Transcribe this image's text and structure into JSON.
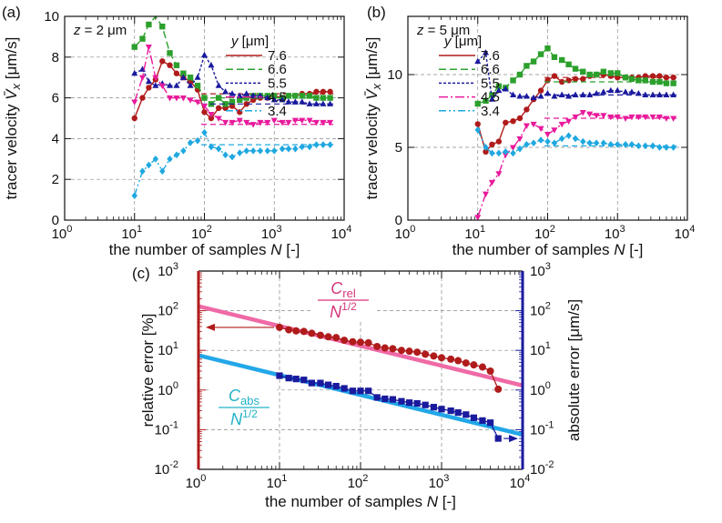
{
  "chart_data": [
    {
      "type": "line",
      "panel": "(a)",
      "annotation": "z = 2 μm",
      "title": "",
      "xlabel": "the number of samples N [-]",
      "ylabel": "tracer velocity V̄x [μm/s]",
      "xscale": "log",
      "xlim": [
        1,
        10000
      ],
      "ylim": [
        0,
        10
      ],
      "x_ticks": [
        1,
        10,
        100,
        1000,
        10000
      ],
      "x_tick_labels": [
        "10",
        "10",
        "10",
        "10",
        "10"
      ],
      "x_tick_exponents": [
        "0",
        "1",
        "2",
        "3",
        "4"
      ],
      "y_ticks": [
        0,
        2,
        4,
        6,
        8,
        10
      ],
      "y_tick_labels": [
        "0",
        "2",
        "4",
        "6",
        "8",
        "10"
      ],
      "grid": true,
      "legend_title": "y   [μm]",
      "legend_position": "top-right",
      "series": [
        {
          "name": "7.6",
          "color": "#b01b1b",
          "dash": "",
          "marker": "circle",
          "x": [
            10,
            13,
            16,
            20,
            25,
            32,
            40,
            50,
            63,
            80,
            100,
            125,
            160,
            200,
            250,
            320,
            400,
            500,
            630,
            800,
            1000,
            1300,
            1600,
            2000,
            2500,
            3200,
            4000,
            5000,
            6300
          ],
          "y": [
            5.0,
            6.0,
            6.5,
            6.9,
            7.8,
            7.6,
            7.2,
            7.0,
            6.8,
            6.4,
            5.3,
            5.0,
            5.5,
            5.5,
            5.6,
            5.3,
            5.7,
            5.9,
            6.0,
            6.0,
            6.1,
            6.0,
            6.1,
            6.1,
            6.2,
            6.2,
            6.3,
            6.3,
            6.3
          ],
          "mean": 6.2
        },
        {
          "name": "6.6",
          "color": "#2ca02c",
          "dash": "8 4",
          "marker": "square",
          "x": [
            10,
            13,
            16,
            20,
            25,
            32,
            40,
            50,
            63,
            80,
            100,
            125,
            160,
            200,
            250,
            320,
            400,
            500,
            630,
            800,
            1000,
            1300,
            1600,
            2000,
            2500,
            3200,
            4000,
            5000,
            6300
          ],
          "y": [
            8.5,
            8.9,
            9.6,
            10.3,
            9.5,
            8.2,
            7.6,
            7.2,
            7.0,
            6.6,
            6.0,
            5.7,
            6.0,
            5.7,
            5.8,
            5.9,
            6.0,
            6.1,
            6.1,
            6.1,
            6.1,
            6.0,
            6.1,
            6.1,
            6.1,
            6.1,
            6.0,
            6.0,
            6.0
          ],
          "mean": 6.0
        },
        {
          "name": "5.5",
          "color": "#1a1a9e",
          "dash": "3 2",
          "marker": "triangle",
          "x": [
            10,
            13,
            16,
            20,
            25,
            32,
            40,
            50,
            63,
            80,
            100,
            125,
            160,
            200,
            250,
            320,
            400,
            500,
            630,
            800,
            1000,
            1300,
            1600,
            2000,
            2500,
            3200,
            4000,
            5000,
            6300
          ],
          "y": [
            7.2,
            7.4,
            6.8,
            6.6,
            6.7,
            6.6,
            6.6,
            7.0,
            6.6,
            7.0,
            8.1,
            7.6,
            6.6,
            6.3,
            6.2,
            6.1,
            6.2,
            6.1,
            6.1,
            6.0,
            5.9,
            5.9,
            5.8,
            5.8,
            5.8,
            5.7,
            5.7,
            5.7,
            5.7
          ],
          "mean": 5.7
        },
        {
          "name": "4.5",
          "color": "#e8199b",
          "dash": "10 3 2 3",
          "marker": "invtriangle",
          "x": [
            10,
            13,
            16,
            20,
            25,
            32,
            40,
            50,
            63,
            80,
            100,
            125,
            160,
            200,
            250,
            320,
            400,
            500,
            630,
            800,
            1000,
            1300,
            1600,
            2000,
            2500,
            3200,
            4000,
            5000,
            6300
          ],
          "y": [
            5.8,
            7.0,
            8.5,
            7.0,
            6.6,
            6.0,
            6.0,
            6.0,
            5.9,
            5.8,
            5.6,
            5.2,
            5.0,
            4.8,
            4.8,
            4.9,
            4.8,
            4.7,
            4.8,
            4.8,
            4.9,
            4.8,
            4.8,
            4.9,
            4.9,
            4.9,
            4.8,
            4.8,
            4.8
          ],
          "mean": 4.7
        },
        {
          "name": "3.4",
          "color": "#1fa8e0",
          "dash": "8 3 2 3 2 3",
          "marker": "diamond",
          "x": [
            10,
            13,
            16,
            20,
            25,
            32,
            40,
            50,
            63,
            80,
            100,
            125,
            160,
            200,
            250,
            320,
            400,
            500,
            630,
            800,
            1000,
            1300,
            1600,
            2000,
            2500,
            3200,
            4000,
            5000,
            6300
          ],
          "y": [
            1.2,
            2.4,
            2.7,
            3.0,
            2.4,
            3.0,
            3.2,
            3.4,
            3.8,
            3.9,
            4.3,
            3.6,
            3.5,
            3.2,
            3.1,
            3.3,
            3.4,
            3.4,
            3.4,
            3.4,
            3.4,
            3.5,
            3.5,
            3.5,
            3.6,
            3.6,
            3.7,
            3.7,
            3.7
          ],
          "mean": 3.7
        }
      ]
    },
    {
      "type": "line",
      "panel": "(b)",
      "annotation": "z = 5 μm",
      "title": "",
      "xlabel": "the number of samples N [-]",
      "ylabel": "tracer velocity V̄x [μm/s]",
      "xscale": "log",
      "xlim": [
        1,
        10000
      ],
      "ylim": [
        0,
        14
      ],
      "x_ticks": [
        1,
        10,
        100,
        1000,
        10000
      ],
      "x_tick_labels": [
        "10",
        "10",
        "10",
        "10",
        "10"
      ],
      "x_tick_exponents": [
        "0",
        "1",
        "2",
        "3",
        "4"
      ],
      "y_ticks": [
        0,
        5,
        10
      ],
      "y_tick_labels": [
        "0",
        "5",
        "10"
      ],
      "grid": true,
      "legend_title": "y   [μm]",
      "legend_position": "top-right",
      "series": [
        {
          "name": "7.6",
          "color": "#b01b1b",
          "dash": "",
          "marker": "circle",
          "x": [
            10,
            13,
            16,
            20,
            25,
            32,
            40,
            50,
            63,
            80,
            100,
            125,
            160,
            200,
            250,
            320,
            400,
            500,
            630,
            800,
            1000,
            1300,
            1600,
            2000,
            2500,
            3200,
            4000,
            5000,
            6300
          ],
          "y": [
            6.6,
            4.7,
            5.2,
            5.4,
            6.7,
            6.8,
            7.0,
            7.6,
            8.3,
            8.9,
            9.6,
            9.9,
            9.5,
            9.6,
            9.7,
            9.7,
            9.9,
            10.0,
            10.0,
            9.9,
            9.8,
            9.8,
            9.8,
            9.8,
            9.9,
            9.9,
            9.9,
            9.8,
            9.8
          ],
          "mean": 9.8
        },
        {
          "name": "6.6",
          "color": "#2ca02c",
          "dash": "8 4",
          "marker": "square",
          "x": [
            10,
            13,
            16,
            20,
            25,
            32,
            40,
            50,
            63,
            80,
            100,
            125,
            160,
            200,
            250,
            320,
            400,
            500,
            630,
            800,
            1000,
            1300,
            1600,
            2000,
            2500,
            3200,
            4000,
            5000,
            6300
          ],
          "y": [
            8.0,
            8.2,
            8.6,
            9.2,
            9.1,
            9.6,
            10.0,
            10.6,
            10.9,
            11.4,
            11.8,
            11.2,
            11.0,
            10.7,
            10.4,
            10.2,
            10.0,
            10.0,
            10.2,
            10.1,
            10.1,
            9.8,
            9.7,
            9.6,
            9.6,
            9.5,
            9.5,
            9.4,
            9.4
          ],
          "mean": 9.5
        },
        {
          "name": "5.5",
          "color": "#1a1a9e",
          "dash": "3 2",
          "marker": "triangle",
          "x": [
            10,
            13,
            16,
            20,
            25,
            32,
            40,
            50,
            63,
            80,
            100,
            125,
            160,
            200,
            250,
            320,
            400,
            500,
            630,
            800,
            1000,
            1300,
            1600,
            2000,
            2500,
            3200,
            4000,
            5000,
            6300
          ],
          "y": [
            10.9,
            11.5,
            8.3,
            8.9,
            9.0,
            8.6,
            8.5,
            8.5,
            8.4,
            8.5,
            8.7,
            8.5,
            8.6,
            8.5,
            8.6,
            8.6,
            8.6,
            8.7,
            8.8,
            8.9,
            8.9,
            8.8,
            8.8,
            8.7,
            8.6,
            8.6,
            8.6,
            8.6,
            8.6
          ],
          "mean": 8.6
        },
        {
          "name": "4.5",
          "color": "#e8199b",
          "dash": "10 3 2 3",
          "marker": "invtriangle",
          "x": [
            10,
            13,
            16,
            20,
            25,
            32,
            40,
            50,
            63,
            80,
            100,
            125,
            160,
            200,
            250,
            320,
            400,
            500,
            630,
            800,
            1000,
            1300,
            1600,
            2000,
            2500,
            3200,
            4000,
            5000,
            6300
          ],
          "y": [
            0.2,
            1.8,
            2.6,
            3.2,
            4.5,
            5.0,
            5.6,
            6.5,
            6.6,
            6.3,
            5.9,
            6.2,
            6.6,
            6.8,
            7.1,
            7.4,
            7.3,
            7.2,
            7.2,
            7.1,
            7.1,
            7.0,
            7.1,
            7.1,
            7.1,
            7.1,
            7.1,
            7.0,
            7.0
          ],
          "mean": 7.0
        },
        {
          "name": "3.4",
          "color": "#1fa8e0",
          "dash": "8 3 2 3 2 3",
          "marker": "diamond",
          "x": [
            10,
            13,
            16,
            20,
            25,
            32,
            40,
            50,
            63,
            80,
            100,
            125,
            160,
            200,
            250,
            320,
            400,
            500,
            630,
            800,
            1000,
            1300,
            1600,
            2000,
            2500,
            3200,
            4000,
            5000,
            6300
          ],
          "y": [
            6.2,
            5.0,
            4.6,
            4.6,
            4.7,
            4.6,
            4.9,
            5.2,
            5.3,
            5.5,
            5.4,
            5.3,
            5.6,
            5.8,
            5.6,
            5.4,
            5.3,
            5.3,
            5.3,
            5.2,
            5.2,
            5.2,
            5.2,
            5.1,
            5.1,
            5.1,
            5.0,
            5.0,
            5.0
          ],
          "mean": 5.1
        }
      ]
    },
    {
      "type": "scatter",
      "panel": "(c)",
      "title": "",
      "xlabel": "the number of samples N [-]",
      "ylabel_left": "relative error [%]",
      "ylabel_right": "absolute error [μm/s]",
      "xscale": "log",
      "yscale": "log",
      "xlim": [
        1,
        10000
      ],
      "ylim": [
        0.01,
        1000
      ],
      "x_ticks": [
        1,
        10,
        100,
        1000,
        10000
      ],
      "x_tick_labels": [
        "10",
        "10",
        "10",
        "10",
        "10"
      ],
      "x_tick_exponents": [
        "0",
        "1",
        "2",
        "3",
        "4"
      ],
      "y_ticks": [
        0.01,
        0.1,
        1,
        10,
        100,
        1000
      ],
      "y_tick_labels": [
        "10",
        "10",
        "10",
        "10",
        "10",
        "10"
      ],
      "y_tick_exponents": [
        "-2",
        "-1",
        "0",
        "1",
        "2",
        "3"
      ],
      "grid": true,
      "relative_error": {
        "color": "#b01b1b",
        "marker": "circle",
        "x": [
          10,
          13,
          16,
          20,
          25,
          32,
          40,
          50,
          63,
          80,
          100,
          125,
          160,
          200,
          250,
          320,
          400,
          500,
          630,
          800,
          1000,
          1300,
          1600,
          2000,
          2500,
          3200,
          4000,
          5000
        ],
        "y": [
          38,
          33,
          31,
          30,
          27,
          24,
          22,
          21,
          18,
          16.5,
          16,
          15.5,
          12.5,
          11.5,
          11,
          10,
          9.5,
          9,
          8,
          7.2,
          6.5,
          6,
          5.5,
          4.8,
          4.3,
          3.8,
          3.0,
          1.05
        ]
      },
      "absolute_error": {
        "color": "#1a1a9e",
        "marker": "square",
        "x": [
          10,
          13,
          16,
          20,
          25,
          32,
          40,
          50,
          63,
          80,
          100,
          125,
          160,
          200,
          250,
          320,
          400,
          500,
          630,
          800,
          1000,
          1300,
          1600,
          2000,
          2500,
          3200,
          4000,
          5000
        ],
        "y": [
          2.3,
          2.0,
          1.9,
          1.8,
          1.5,
          1.5,
          1.35,
          1.25,
          1.1,
          0.95,
          0.95,
          0.95,
          0.65,
          0.6,
          0.58,
          0.52,
          0.48,
          0.46,
          0.42,
          0.37,
          0.33,
          0.3,
          0.27,
          0.24,
          0.2,
          0.17,
          0.15,
          0.06
        ]
      },
      "fit_relative": {
        "label_num": "C",
        "label_sub": "rel",
        "label_den": "N",
        "label_exp": "1/2",
        "color": "#ef6aa6",
        "coefficient": 130
      },
      "fit_absolute": {
        "label_num": "C",
        "label_sub": "abs",
        "label_den": "N",
        "label_exp": "1/2",
        "color": "#22a7e8",
        "coefficient": 7.5
      }
    }
  ],
  "colors": {
    "left_axis": "#b01b1b",
    "right_axis": "#1a1a9e",
    "fit_rel_label": "#d6357a",
    "fit_abs_label": "#21b2c8"
  }
}
